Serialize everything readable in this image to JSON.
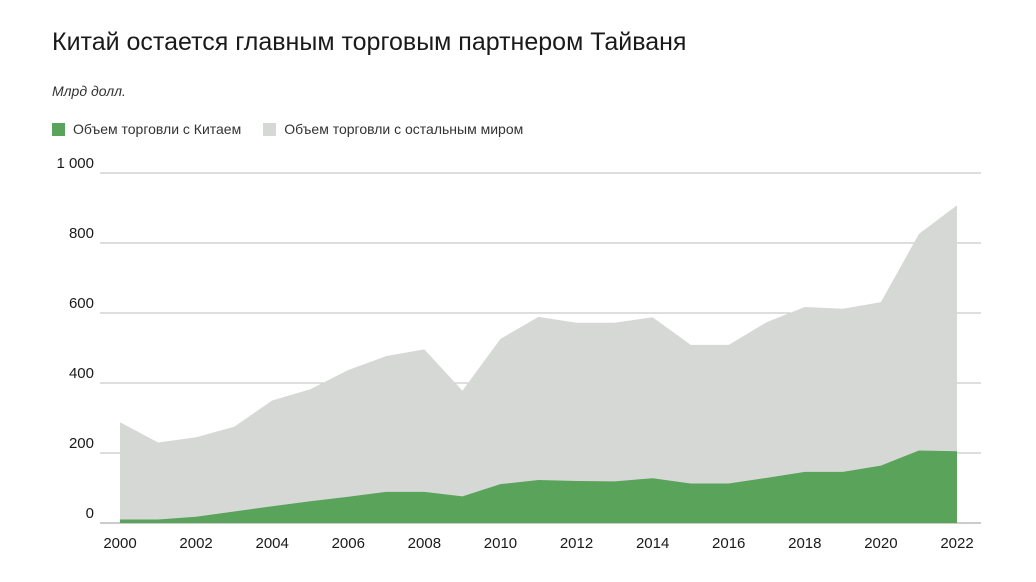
{
  "chart_data": {
    "type": "area",
    "title": "Китай остается главным торговым партнером Тайваня",
    "subtitle": "Млрд долл.",
    "x": [
      2000,
      2001,
      2002,
      2003,
      2004,
      2005,
      2006,
      2007,
      2008,
      2009,
      2010,
      2011,
      2012,
      2013,
      2014,
      2015,
      2016,
      2017,
      2018,
      2019,
      2020,
      2021,
      2022
    ],
    "series": [
      {
        "name": "Объем торговли с Китаем",
        "color": "#5aa35a",
        "values": [
          10,
          10,
          18,
          33,
          48,
          62,
          75,
          89,
          89,
          76,
          111,
          123,
          120,
          119,
          128,
          113,
          113,
          129,
          146,
          146,
          164,
          207,
          205
        ]
      },
      {
        "name": "Объем торговли с остальным миром",
        "color": "#d6d8d6",
        "values": [
          288,
          230,
          245,
          275,
          350,
          382,
          437,
          477,
          496,
          378,
          526,
          589,
          572,
          572,
          588,
          509,
          509,
          574,
          617,
          612,
          631,
          826,
          908
        ]
      }
    ],
    "ylim": [
      0,
      1000
    ],
    "yticks": [
      0,
      200,
      400,
      600,
      800,
      1000
    ],
    "ytick_labels": [
      "0",
      "200",
      "400",
      "600",
      "800",
      "1 000"
    ],
    "xticks": [
      2000,
      2002,
      2004,
      2006,
      2008,
      2010,
      2012,
      2014,
      2016,
      2018,
      2020,
      2022
    ],
    "xtick_labels": [
      "2000",
      "2002",
      "2004",
      "2006",
      "2008",
      "2010",
      "2012",
      "2014",
      "2016",
      "2018",
      "2020",
      "2022"
    ],
    "grid": true,
    "legend_position": "top-left"
  }
}
